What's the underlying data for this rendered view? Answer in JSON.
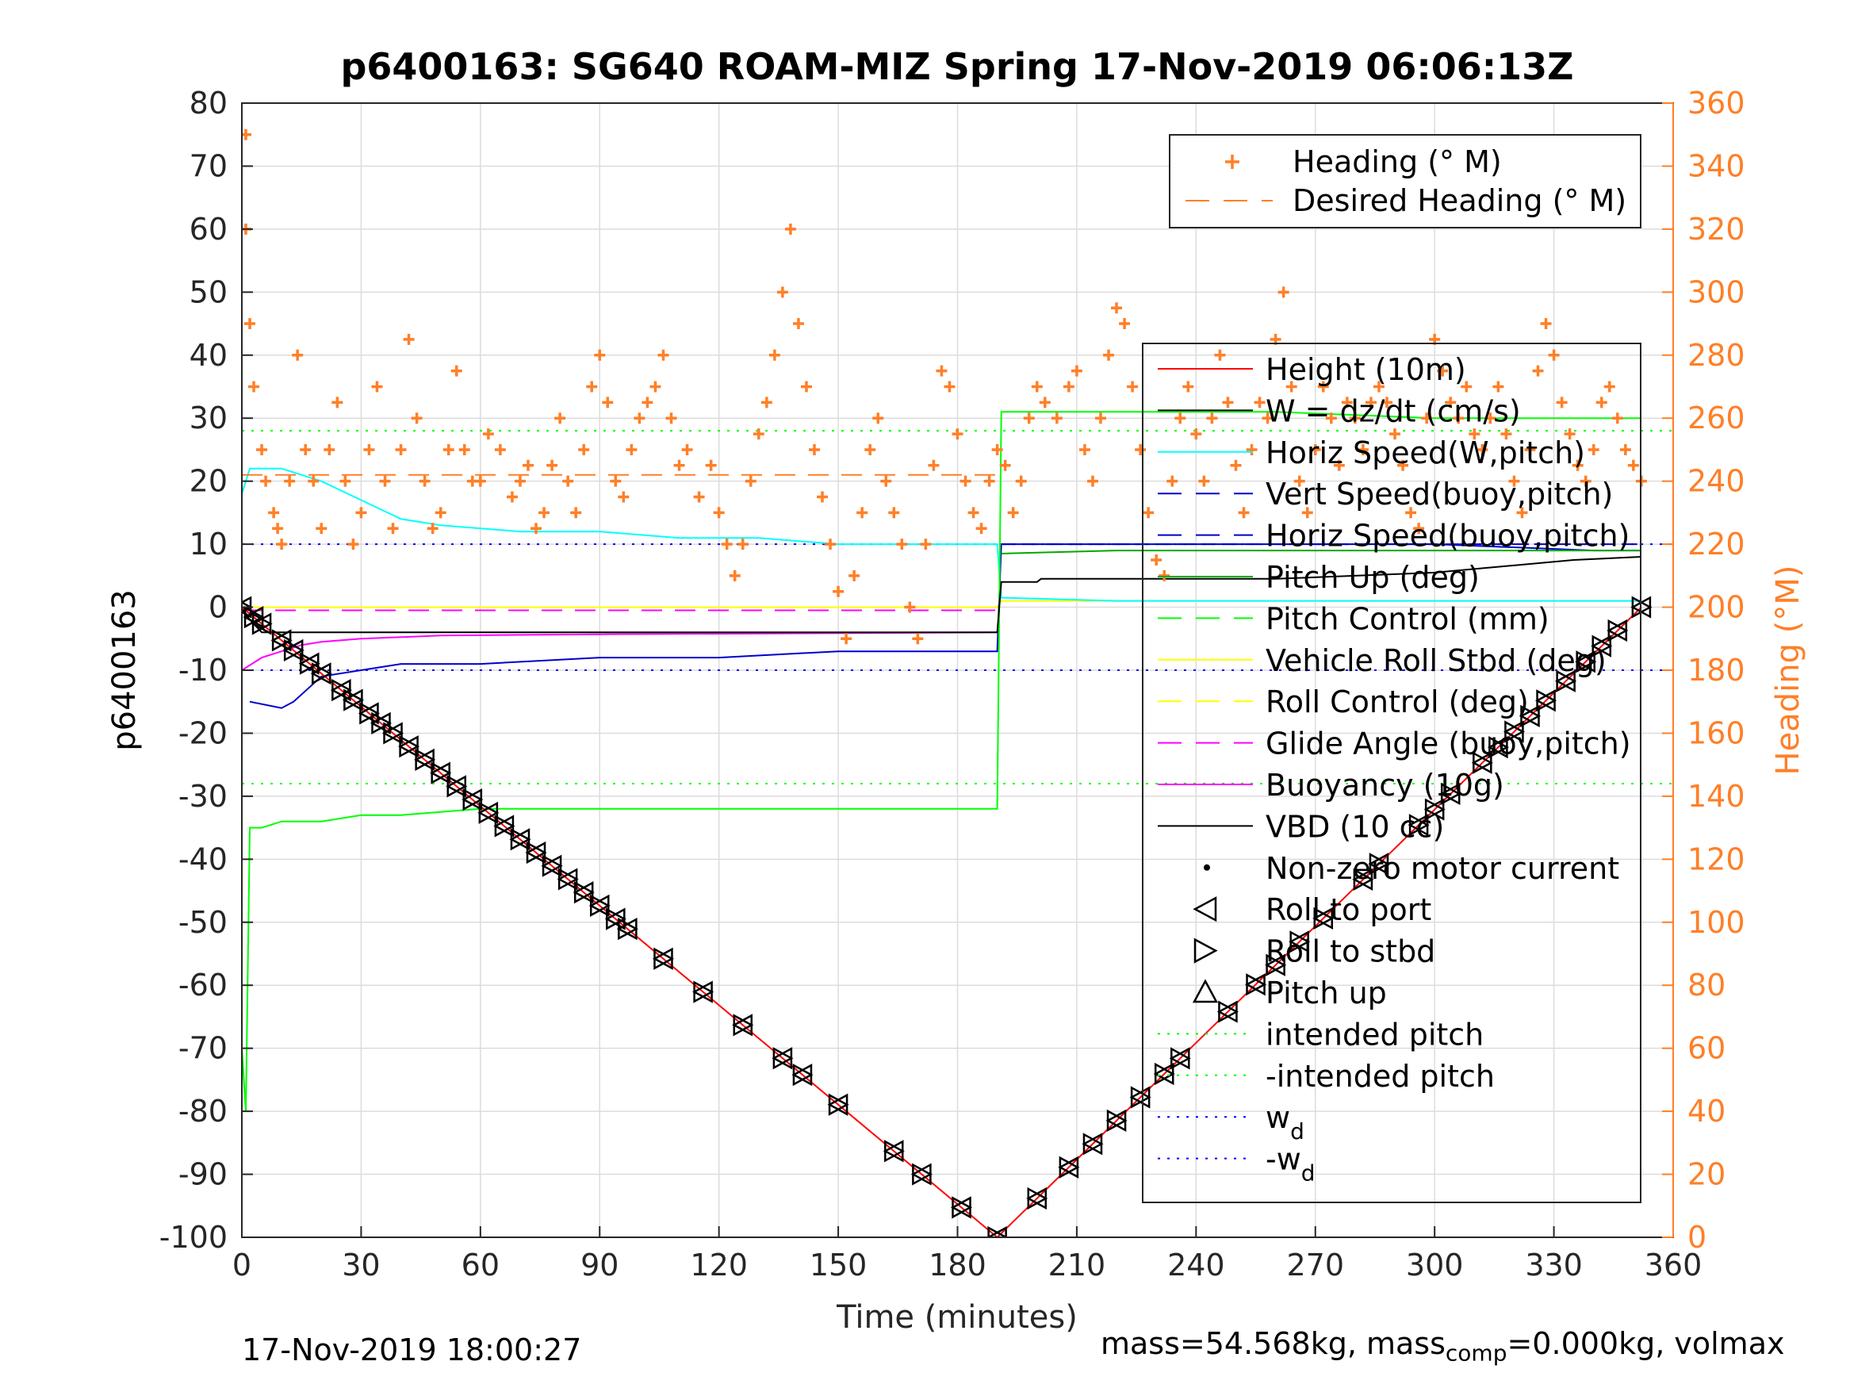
{
  "chart_data": {
    "type": "line",
    "title": "p6400163: SG640 ROAM-MIZ Spring 17-Nov-2019 06:06:13Z",
    "xlabel": "Time (minutes)",
    "ylabel": "p6400163",
    "y2label": "Heading (°M)",
    "xlim": [
      0,
      360
    ],
    "ylim": [
      -100,
      80
    ],
    "y2lim": [
      0,
      360
    ],
    "xticks": [
      0,
      30,
      60,
      90,
      120,
      150,
      180,
      210,
      240,
      270,
      300,
      330,
      360
    ],
    "yticks": [
      -100,
      -90,
      -80,
      -70,
      -60,
      -50,
      -40,
      -30,
      -20,
      -10,
      0,
      10,
      20,
      30,
      40,
      50,
      60,
      70,
      80
    ],
    "y2ticks": [
      0,
      20,
      40,
      60,
      80,
      100,
      120,
      140,
      160,
      180,
      200,
      220,
      240,
      260,
      280,
      300,
      320,
      340,
      360
    ],
    "grid": true,
    "colors": {
      "height": "#ff0000",
      "w": "#000000",
      "horiz_w": "#00ffff",
      "vert_buoy": "#0000cc",
      "horiz_buoy": "#0000cc",
      "pitch_up": "#00aa00",
      "pitch_control": "#00ff00",
      "roll": "#ffff00",
      "roll_control": "#ffff00",
      "glide": "#ff00ff",
      "buoyancy": "#ff00ff",
      "vbd": "#000000",
      "heading": "#ff7f27",
      "intended": "#00ff00",
      "wd": "#0000ff"
    },
    "legend_heading": {
      "placement": "top-right",
      "entries": [
        "Heading (° M)",
        "Desired Heading (° M)"
      ]
    },
    "legend_main": {
      "placement": "right",
      "entries": [
        "Height (10m)",
        "W = dz/dt (cm/s)",
        "Horiz Speed(W,pitch)",
        "Vert Speed(buoy,pitch)",
        "Horiz Speed(buoy,pitch)",
        "Pitch Up (deg)",
        "Pitch Control (mm)",
        "Vehicle Roll Stbd (deg)",
        "Roll Control (deg)",
        "Glide Angle (buoy,pitch)",
        "Buoyancy (10g)",
        "VBD (10 cc)",
        "Non-zero motor current",
        "Roll to port",
        "Roll to stbd",
        "Pitch up",
        "intended pitch",
        "-intended pitch",
        "w",
        "-w"
      ],
      "subscript": "d"
    },
    "series": [
      {
        "name": "Height (10m)",
        "x": [
          0,
          190,
          352
        ],
        "y": [
          0,
          -100,
          0
        ]
      },
      {
        "name": "W = dz/dt (cm/s)",
        "x": [
          0,
          2,
          5,
          190,
          191,
          200,
          201,
          260,
          300,
          335,
          352
        ],
        "y": [
          0,
          -2,
          -4,
          -4,
          4,
          4,
          4.5,
          4.5,
          5.5,
          7.5,
          8
        ]
      },
      {
        "name": "Horiz Speed(W,pitch)",
        "x": [
          0,
          2,
          10,
          20,
          30,
          40,
          50,
          70,
          90,
          110,
          130,
          150,
          170,
          190,
          191,
          220,
          260,
          300,
          352
        ],
        "y": [
          18,
          22,
          22,
          20,
          17,
          14,
          13,
          12,
          12,
          11,
          11,
          10,
          10,
          10,
          1.5,
          1,
          1,
          1,
          1
        ]
      },
      {
        "name": "Vert Speed(buoy,pitch)",
        "x": [
          2,
          10,
          13,
          20,
          30,
          40,
          60,
          90,
          120,
          150,
          170,
          190,
          191,
          220,
          260,
          300,
          340,
          352
        ],
        "y": [
          -15,
          -16,
          -15,
          -11,
          -10,
          -9,
          -9,
          -8,
          -8,
          -7,
          -7,
          -7,
          10,
          10,
          10,
          10,
          9,
          9
        ]
      },
      {
        "name": "Horiz Speed(buoy,pitch)",
        "x": [
          191,
          220,
          260,
          300,
          352
        ],
        "y": [
          10,
          10,
          10,
          10,
          10
        ]
      },
      {
        "name": "Pitch Up (deg)",
        "x": [
          191,
          220,
          260,
          300,
          352
        ],
        "y": [
          8.5,
          9,
          9,
          9,
          9
        ]
      },
      {
        "name": "Pitch Control (mm)",
        "x": [
          0,
          1,
          2,
          5,
          10,
          20,
          30,
          40,
          60,
          90,
          120,
          150,
          170,
          190,
          191,
          220,
          260,
          300,
          352
        ],
        "y": [
          -70,
          -80,
          -35,
          -35,
          -34,
          -34,
          -33,
          -33,
          -32,
          -32,
          -32,
          -32,
          -32,
          -32,
          31,
          31,
          31,
          30,
          30
        ]
      },
      {
        "name": "Vehicle Roll Stbd (deg)",
        "x": [
          0,
          190,
          191,
          352
        ],
        "y": [
          0,
          0,
          1,
          1
        ]
      },
      {
        "name": "Glide Angle (buoy,pitch)",
        "x": [
          0,
          190
        ],
        "y": [
          -0.5,
          -0.5
        ]
      },
      {
        "name": "Buoyancy (10g)",
        "x": [
          0,
          5,
          10,
          15,
          20,
          30,
          50,
          90,
          190
        ],
        "y": [
          -10,
          -8,
          -7,
          -6,
          -5.5,
          -5,
          -4.5,
          -4.3,
          -4
        ]
      },
      {
        "name": "intended pitch",
        "x": [
          0,
          360
        ],
        "y": [
          28,
          28
        ]
      },
      {
        "name": "-intended pitch",
        "x": [
          0,
          360
        ],
        "y": [
          -28,
          -28
        ]
      },
      {
        "name": "w_d",
        "x": [
          0,
          360
        ],
        "y": [
          10,
          10
        ]
      },
      {
        "name": "-w_d",
        "x": [
          0,
          360
        ],
        "y": [
          -10,
          -10
        ]
      }
    ],
    "heading_desired": {
      "name": "Desired Heading (° M)",
      "x": [
        0,
        190
      ],
      "y": [
        242,
        242
      ]
    },
    "heading_points": [
      [
        1,
        350
      ],
      [
        1,
        320
      ],
      [
        2,
        290
      ],
      [
        3,
        270
      ],
      [
        5,
        250
      ],
      [
        6,
        240
      ],
      [
        8,
        230
      ],
      [
        9,
        225
      ],
      [
        10,
        220
      ],
      [
        12,
        240
      ],
      [
        14,
        280
      ],
      [
        16,
        250
      ],
      [
        18,
        240
      ],
      [
        20,
        225
      ],
      [
        22,
        250
      ],
      [
        24,
        265
      ],
      [
        26,
        240
      ],
      [
        28,
        220
      ],
      [
        30,
        230
      ],
      [
        32,
        250
      ],
      [
        34,
        270
      ],
      [
        36,
        240
      ],
      [
        38,
        225
      ],
      [
        40,
        250
      ],
      [
        42,
        285
      ],
      [
        44,
        260
      ],
      [
        46,
        240
      ],
      [
        48,
        225
      ],
      [
        50,
        230
      ],
      [
        52,
        250
      ],
      [
        54,
        275
      ],
      [
        56,
        250
      ],
      [
        58,
        240
      ],
      [
        60,
        240
      ],
      [
        62,
        255
      ],
      [
        65,
        250
      ],
      [
        68,
        235
      ],
      [
        70,
        240
      ],
      [
        72,
        245
      ],
      [
        74,
        225
      ],
      [
        76,
        230
      ],
      [
        78,
        245
      ],
      [
        80,
        260
      ],
      [
        82,
        240
      ],
      [
        84,
        230
      ],
      [
        86,
        250
      ],
      [
        88,
        270
      ],
      [
        90,
        280
      ],
      [
        92,
        265
      ],
      [
        94,
        240
      ],
      [
        96,
        235
      ],
      [
        98,
        250
      ],
      [
        100,
        260
      ],
      [
        102,
        265
      ],
      [
        104,
        270
      ],
      [
        106,
        280
      ],
      [
        108,
        260
      ],
      [
        110,
        245
      ],
      [
        112,
        250
      ],
      [
        115,
        235
      ],
      [
        118,
        245
      ],
      [
        120,
        230
      ],
      [
        122,
        220
      ],
      [
        124,
        210
      ],
      [
        126,
        220
      ],
      [
        128,
        240
      ],
      [
        130,
        255
      ],
      [
        132,
        265
      ],
      [
        134,
        280
      ],
      [
        136,
        300
      ],
      [
        138,
        320
      ],
      [
        140,
        290
      ],
      [
        142,
        270
      ],
      [
        144,
        250
      ],
      [
        146,
        235
      ],
      [
        148,
        220
      ],
      [
        150,
        205
      ],
      [
        152,
        190
      ],
      [
        154,
        210
      ],
      [
        156,
        230
      ],
      [
        158,
        250
      ],
      [
        160,
        260
      ],
      [
        162,
        240
      ],
      [
        164,
        230
      ],
      [
        166,
        220
      ],
      [
        168,
        200
      ],
      [
        170,
        190
      ],
      [
        172,
        220
      ],
      [
        174,
        245
      ],
      [
        176,
        275
      ],
      [
        178,
        270
      ],
      [
        180,
        255
      ],
      [
        182,
        240
      ],
      [
        184,
        230
      ],
      [
        186,
        225
      ],
      [
        188,
        240
      ],
      [
        190,
        250
      ],
      [
        192,
        245
      ],
      [
        194,
        230
      ],
      [
        196,
        240
      ],
      [
        198,
        260
      ],
      [
        200,
        270
      ],
      [
        202,
        265
      ],
      [
        205,
        260
      ],
      [
        208,
        270
      ],
      [
        210,
        275
      ],
      [
        212,
        250
      ],
      [
        214,
        240
      ],
      [
        216,
        260
      ],
      [
        218,
        280
      ],
      [
        220,
        295
      ],
      [
        222,
        290
      ],
      [
        224,
        270
      ],
      [
        226,
        250
      ],
      [
        228,
        230
      ],
      [
        230,
        215
      ],
      [
        232,
        210
      ],
      [
        234,
        240
      ],
      [
        236,
        260
      ],
      [
        238,
        270
      ],
      [
        240,
        255
      ],
      [
        242,
        240
      ],
      [
        244,
        260
      ],
      [
        246,
        280
      ],
      [
        248,
        265
      ],
      [
        250,
        245
      ],
      [
        252,
        230
      ],
      [
        254,
        250
      ],
      [
        256,
        265
      ],
      [
        258,
        260
      ],
      [
        260,
        285
      ],
      [
        262,
        300
      ],
      [
        264,
        270
      ],
      [
        266,
        240
      ],
      [
        268,
        230
      ],
      [
        270,
        250
      ],
      [
        272,
        270
      ],
      [
        274,
        260
      ],
      [
        276,
        245
      ],
      [
        278,
        265
      ],
      [
        280,
        260
      ],
      [
        282,
        250
      ],
      [
        284,
        265
      ],
      [
        286,
        270
      ],
      [
        288,
        265
      ],
      [
        290,
        255
      ],
      [
        292,
        245
      ],
      [
        294,
        230
      ],
      [
        296,
        225
      ],
      [
        298,
        260
      ],
      [
        300,
        285
      ],
      [
        302,
        275
      ],
      [
        304,
        265
      ],
      [
        306,
        260
      ],
      [
        308,
        270
      ],
      [
        310,
        255
      ],
      [
        312,
        250
      ],
      [
        314,
        260
      ],
      [
        316,
        270
      ],
      [
        318,
        255
      ],
      [
        320,
        240
      ],
      [
        322,
        230
      ],
      [
        324,
        250
      ],
      [
        326,
        275
      ],
      [
        328,
        290
      ],
      [
        330,
        280
      ],
      [
        332,
        265
      ],
      [
        334,
        255
      ],
      [
        336,
        245
      ],
      [
        338,
        240
      ],
      [
        340,
        250
      ],
      [
        342,
        265
      ],
      [
        344,
        270
      ],
      [
        346,
        260
      ],
      [
        348,
        250
      ],
      [
        350,
        245
      ],
      [
        352,
        240
      ]
    ],
    "roll_markers_t": [
      0,
      3,
      5,
      10,
      13,
      17,
      20,
      25,
      28,
      32,
      35,
      38,
      42,
      46,
      50,
      54,
      58,
      62,
      66,
      70,
      74,
      78,
      82,
      86,
      90,
      94,
      97,
      106,
      116,
      126,
      136,
      141,
      150,
      164,
      171,
      181,
      190,
      200,
      208,
      214,
      220,
      226,
      232,
      236,
      248,
      255,
      260,
      266,
      272,
      282,
      286,
      296,
      300,
      304,
      312,
      316,
      320,
      324,
      328,
      333,
      338,
      342,
      346,
      352
    ]
  },
  "footer": {
    "timestamp": "17-Nov-2019 18:00:27",
    "mass_a": "mass=54.568kg, mass",
    "mass_sub": "comp",
    "mass_b": "=0.000kg, volmax"
  }
}
